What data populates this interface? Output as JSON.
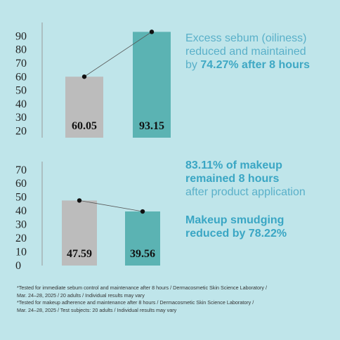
{
  "chart_data": [
    {
      "type": "bar",
      "categories": [
        "",
        ""
      ],
      "values": [
        60.05,
        93.15
      ],
      "data_labels": [
        "60.05",
        "93.15"
      ],
      "bar_colors": [
        "#bcbcbc",
        "#5bb3b3"
      ],
      "yticks": [
        20,
        30,
        40,
        50,
        60,
        70,
        80,
        90
      ],
      "ylim": [
        15,
        98
      ],
      "connector_line": true,
      "grid": false,
      "title": "",
      "xlabel": "",
      "ylabel": ""
    },
    {
      "type": "bar",
      "categories": [
        "",
        ""
      ],
      "values": [
        47.59,
        39.56
      ],
      "data_labels": [
        "47.59",
        "39.56"
      ],
      "bar_colors": [
        "#bcbcbc",
        "#5bb3b3"
      ],
      "yticks": [
        0,
        10,
        20,
        30,
        40,
        50,
        60,
        70
      ],
      "ylim": [
        0,
        74
      ],
      "connector_line": true,
      "grid": false,
      "title": "",
      "xlabel": "",
      "ylabel": ""
    }
  ],
  "claims": {
    "sebum_line1": "Excess sebum (oiliness)",
    "sebum_line2": "reduced and maintained",
    "sebum_line3_prefix": "by ",
    "sebum_line3_bold": "74.27% after 8 hours",
    "makeup_line1": "83.11% of makeup",
    "makeup_line2": "remained 8 hours",
    "makeup_line3": "after product application",
    "smudge_line1": "Makeup smudging",
    "smudge_line2": "reduced by 78.22%"
  },
  "footnote": [
    "*Tested for immediate sebum control and maintenance after 8 hours / Dermacosmetic Skin Science Laboratory /",
    "Mar. 24–28, 2025 / 20 adults / Individual results may vary",
    "*Tested for makeup adherence and maintenance after 8 hours / Dermacosmetic Skin Science Laboratory /",
    "Mar. 24–28, 2025 / Test subjects: 20 adults / Individual results may vary"
  ],
  "colors": {
    "background": "#bfe5ea",
    "bar_gray": "#bcbcbc",
    "bar_teal": "#5bb3b3",
    "accent_text": "#3ea8c4"
  }
}
